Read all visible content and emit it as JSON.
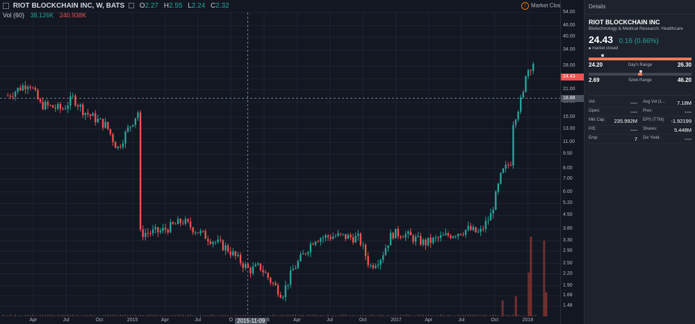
{
  "header": {
    "symbol": "RIOT BLOCKCHAIN INC, W, BATS",
    "open_label": "O",
    "open": "2.27",
    "high_label": "H",
    "high": "2.55",
    "low_label": "L",
    "low": "2.24",
    "close_label": "C",
    "close": "2.32",
    "market_status": "Market Closed"
  },
  "volume_legend": {
    "label": "Vol (60)",
    "value1": "38.126K",
    "value2": "240.938K"
  },
  "crosshair_date": "2015-11-09",
  "colors": {
    "up": "#26a69a",
    "down": "#ef5350",
    "background": "#131722",
    "panel": "#1e222d"
  },
  "chart_data": {
    "type": "candlestick",
    "scale": "log",
    "y_ticks": [
      "54.00",
      "46.00",
      "40.00",
      "34.00",
      "28.00",
      "24.00",
      "21.00",
      "18.00",
      "15.00",
      "13.00",
      "11.00",
      "9.50",
      "8.00",
      "7.00",
      "6.00",
      "5.20",
      "4.50",
      "3.80",
      "3.30",
      "2.90",
      "2.50",
      "2.20",
      "1.90",
      "1.68",
      "1.48"
    ],
    "ylim": [
      1.35,
      54
    ],
    "x_ticks": [
      "Apr",
      "Jul",
      "Oct",
      "2015",
      "Apr",
      "Jul",
      "O",
      "2016",
      "Apr",
      "Jul",
      "Oct",
      "2017",
      "Apr",
      "Jul",
      "Oct",
      "2018"
    ],
    "last_price_label": "24.43",
    "crosshair_price_label": "18.88",
    "waypoints": [
      {
        "date": "2014-01",
        "price": 19.5
      },
      {
        "date": "2014-03",
        "price": 23.0
      },
      {
        "date": "2014-04",
        "price": 17.5
      },
      {
        "date": "2014-06",
        "price": 16.5
      },
      {
        "date": "2014-07",
        "price": 19.0
      },
      {
        "date": "2014-08",
        "price": 16.0
      },
      {
        "date": "2014-10",
        "price": 13.5
      },
      {
        "date": "2014-11",
        "price": 10.2
      },
      {
        "date": "2014-12",
        "price": 13.0
      },
      {
        "date": "2015-01",
        "price": 16.5
      },
      {
        "date": "2015-01",
        "price": 3.6
      },
      {
        "date": "2015-03",
        "price": 3.7
      },
      {
        "date": "2015-05",
        "price": 4.2
      },
      {
        "date": "2015-06",
        "price": 3.8
      },
      {
        "date": "2015-07",
        "price": 3.5
      },
      {
        "date": "2015-09",
        "price": 3.0
      },
      {
        "date": "2015-11",
        "price": 2.3
      },
      {
        "date": "2015-12",
        "price": 2.4
      },
      {
        "date": "2016-01",
        "price": 2.0
      },
      {
        "date": "2016-02",
        "price": 1.7
      },
      {
        "date": "2016-03",
        "price": 2.3
      },
      {
        "date": "2016-05",
        "price": 3.4
      },
      {
        "date": "2016-07",
        "price": 3.5
      },
      {
        "date": "2016-09",
        "price": 3.4
      },
      {
        "date": "2016-10",
        "price": 2.4
      },
      {
        "date": "2016-11",
        "price": 2.7
      },
      {
        "date": "2016-12",
        "price": 3.6
      },
      {
        "date": "2017-01",
        "price": 3.6
      },
      {
        "date": "2017-03",
        "price": 3.2
      },
      {
        "date": "2017-05",
        "price": 3.5
      },
      {
        "date": "2017-07",
        "price": 3.8
      },
      {
        "date": "2017-08",
        "price": 3.6
      },
      {
        "date": "2017-09",
        "price": 4.5
      },
      {
        "date": "2017-10",
        "price": 7.5
      },
      {
        "date": "2017-11",
        "price": 9.0
      },
      {
        "date": "2017-11",
        "price": 14.0
      },
      {
        "date": "2017-12",
        "price": 20.0
      },
      {
        "date": "2017-12",
        "price": 36.0
      },
      {
        "date": "2017-12",
        "price": 25.0
      },
      {
        "date": "2018-01",
        "price": 30.0
      },
      {
        "date": "2018-01",
        "price": 24.43
      }
    ],
    "volume_spikes": [
      {
        "date": "2017-10",
        "value": 0.2
      },
      {
        "date": "2017-11",
        "value": 0.25
      },
      {
        "date": "2017-12",
        "value": 0.55
      },
      {
        "date": "2017-12",
        "value": 1.0
      },
      {
        "date": "2018-01",
        "value": 0.95
      },
      {
        "date": "2018-01",
        "value": 0.3
      }
    ]
  },
  "details": {
    "title": "Details",
    "name": "RIOT BLOCKCHAIN INC",
    "sector": "Biotechnology & Medical Research: Healthcare",
    "price": "24.43",
    "change": "0.16 (0.66%)",
    "market_status": "market closed",
    "days_range": {
      "label": "Day's Range",
      "low": "24.20",
      "high": "26.30"
    },
    "week52_range": {
      "label": "52wk Range",
      "low": "2.69",
      "high": "46.20"
    },
    "stats": [
      {
        "k1": "Vol:",
        "v1": "----",
        "k2": "Avg Vol (1...",
        "v2": "7.18M"
      },
      {
        "k1": "Open:",
        "v1": "----",
        "k2": "Prev:",
        "v2": "----"
      },
      {
        "k1": "Mkt Cap:",
        "v1": "235.992M",
        "k2": "EPS (TTM):",
        "v2": "-1.92199"
      },
      {
        "k1": "P/E:",
        "v1": "----",
        "k2": "Shares:",
        "v2": "5.448M"
      },
      {
        "k1": "Emp:",
        "v1": "7",
        "k2": "Div Yield:",
        "v2": "----"
      }
    ]
  }
}
